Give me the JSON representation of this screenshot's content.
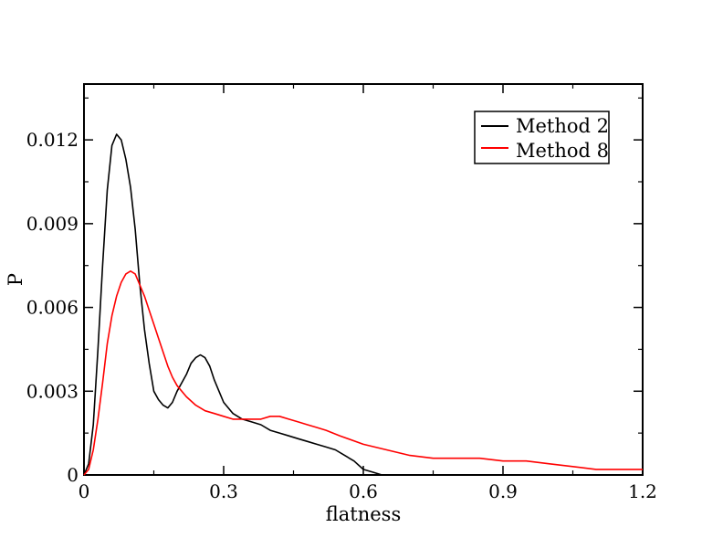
{
  "chart_data": {
    "type": "line",
    "xlabel": "flatness",
    "ylabel": "P",
    "xlim": [
      0,
      1.2
    ],
    "ylim": [
      0,
      0.014
    ],
    "xticks": [
      0,
      0.3,
      0.6,
      0.9,
      1.2
    ],
    "xtick_labels": [
      "0",
      "0.3",
      "0.6",
      "0.9",
      "1.2"
    ],
    "yticks": [
      0,
      0.003,
      0.006,
      0.009,
      0.012
    ],
    "ytick_labels": [
      "0",
      "0.003",
      "0.006",
      "0.009",
      "0.012"
    ],
    "grid": false,
    "legend_position": "top-right",
    "series": [
      {
        "name": "Method 2",
        "color": "#000000",
        "x": [
          0.0,
          0.01,
          0.02,
          0.03,
          0.04,
          0.05,
          0.06,
          0.07,
          0.08,
          0.09,
          0.1,
          0.11,
          0.12,
          0.13,
          0.14,
          0.15,
          0.16,
          0.17,
          0.18,
          0.19,
          0.2,
          0.21,
          0.22,
          0.23,
          0.24,
          0.25,
          0.26,
          0.27,
          0.28,
          0.29,
          0.3,
          0.32,
          0.34,
          0.36,
          0.38,
          0.4,
          0.42,
          0.44,
          0.46,
          0.48,
          0.5,
          0.52,
          0.54,
          0.56,
          0.58,
          0.6,
          0.62,
          0.64
        ],
        "y": [
          0.0,
          0.0004,
          0.0018,
          0.0045,
          0.0075,
          0.0102,
          0.0118,
          0.0122,
          0.012,
          0.0113,
          0.0103,
          0.0088,
          0.0068,
          0.0052,
          0.004,
          0.003,
          0.0027,
          0.0025,
          0.0024,
          0.0026,
          0.003,
          0.0033,
          0.0036,
          0.004,
          0.0042,
          0.0043,
          0.0042,
          0.0039,
          0.0034,
          0.003,
          0.0026,
          0.0022,
          0.002,
          0.0019,
          0.0018,
          0.0016,
          0.0015,
          0.0014,
          0.0013,
          0.0012,
          0.0011,
          0.001,
          0.0009,
          0.0007,
          0.0005,
          0.0002,
          0.0001,
          0.0
        ]
      },
      {
        "name": "Method 8",
        "color": "#ff0000",
        "x": [
          0.0,
          0.01,
          0.02,
          0.03,
          0.04,
          0.05,
          0.06,
          0.07,
          0.08,
          0.09,
          0.1,
          0.11,
          0.12,
          0.13,
          0.14,
          0.15,
          0.16,
          0.17,
          0.18,
          0.19,
          0.2,
          0.22,
          0.24,
          0.26,
          0.28,
          0.3,
          0.32,
          0.34,
          0.36,
          0.38,
          0.4,
          0.42,
          0.44,
          0.46,
          0.48,
          0.5,
          0.52,
          0.55,
          0.6,
          0.65,
          0.7,
          0.75,
          0.8,
          0.85,
          0.9,
          0.95,
          1.0,
          1.05,
          1.1,
          1.15,
          1.2
        ],
        "y": [
          0.0,
          0.0002,
          0.0009,
          0.002,
          0.0033,
          0.0047,
          0.0057,
          0.0064,
          0.0069,
          0.0072,
          0.0073,
          0.0072,
          0.0068,
          0.0064,
          0.0059,
          0.0054,
          0.0049,
          0.0044,
          0.0039,
          0.0035,
          0.0032,
          0.0028,
          0.0025,
          0.0023,
          0.0022,
          0.0021,
          0.002,
          0.002,
          0.002,
          0.002,
          0.0021,
          0.0021,
          0.002,
          0.0019,
          0.0018,
          0.0017,
          0.0016,
          0.0014,
          0.0011,
          0.0009,
          0.0007,
          0.0006,
          0.0006,
          0.0006,
          0.0005,
          0.0005,
          0.0004,
          0.0003,
          0.0002,
          0.0002,
          0.0002
        ]
      }
    ]
  }
}
